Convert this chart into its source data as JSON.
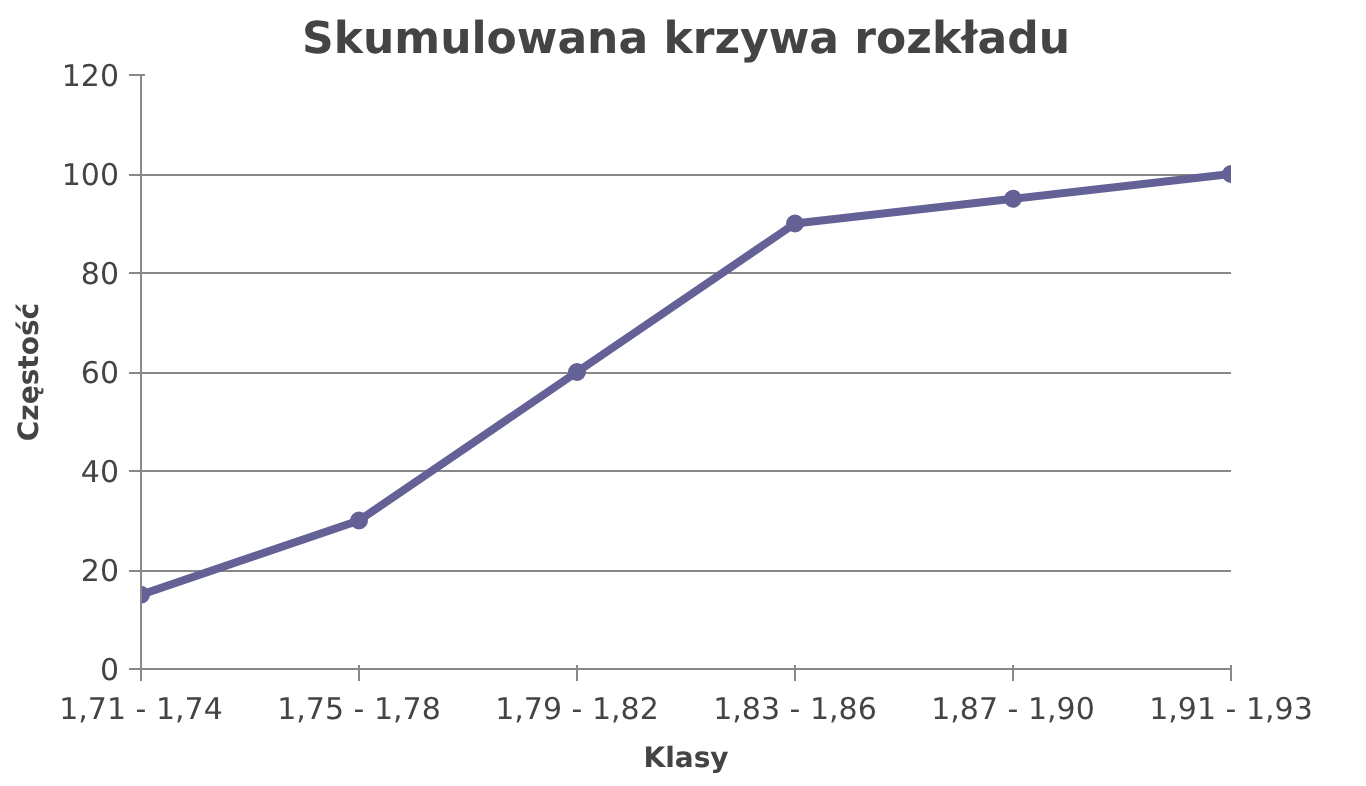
{
  "chart_data": {
    "type": "line",
    "title": "Skumulowana krzywa rozkładu",
    "xlabel": "Klasy",
    "ylabel": "Częstość",
    "categories": [
      "1,71 - 1,74",
      "1,75 - 1,78",
      "1,79 - 1,82",
      "1,83 - 1,86",
      "1,87 - 1,90",
      "1,91 - 1,93"
    ],
    "series": [
      {
        "color": "#646196",
        "values": [
          15,
          30,
          60,
          90,
          95,
          100
        ]
      }
    ],
    "ylim": [
      0,
      120
    ],
    "yticks": [
      0,
      20,
      40,
      60,
      80,
      100,
      120
    ],
    "grid": "y",
    "marker": "circle",
    "line_style": "solid"
  }
}
